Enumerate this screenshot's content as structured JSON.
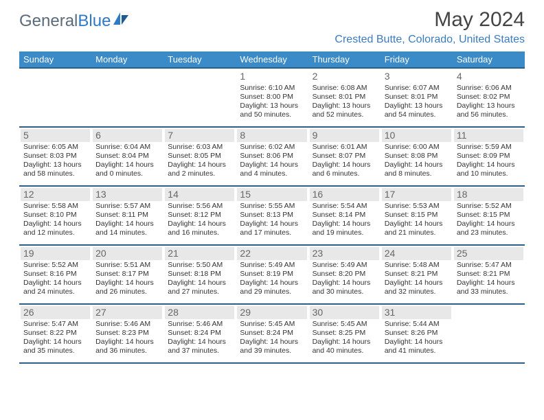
{
  "brand": {
    "part1": "General",
    "part2": "Blue"
  },
  "title": "May 2024",
  "location": "Crested Butte, Colorado, United States",
  "colors": {
    "header_bg": "#3b8bc9",
    "header_text": "#ffffff",
    "row_border": "#2d5e8a",
    "daynum_shade": "#e8e8e8",
    "location_color": "#3b7bbf",
    "logo_gray": "#5a6b7a",
    "logo_blue": "#2e7ac4"
  },
  "day_headers": [
    "Sunday",
    "Monday",
    "Tuesday",
    "Wednesday",
    "Thursday",
    "Friday",
    "Saturday"
  ],
  "weeks": [
    [
      null,
      null,
      null,
      {
        "n": "1",
        "shaded": false,
        "sunrise": "6:10 AM",
        "sunset": "8:00 PM",
        "dlh": "13",
        "dlm": "50"
      },
      {
        "n": "2",
        "shaded": false,
        "sunrise": "6:08 AM",
        "sunset": "8:01 PM",
        "dlh": "13",
        "dlm": "52"
      },
      {
        "n": "3",
        "shaded": false,
        "sunrise": "6:07 AM",
        "sunset": "8:01 PM",
        "dlh": "13",
        "dlm": "54"
      },
      {
        "n": "4",
        "shaded": false,
        "sunrise": "6:06 AM",
        "sunset": "8:02 PM",
        "dlh": "13",
        "dlm": "56"
      }
    ],
    [
      {
        "n": "5",
        "shaded": true,
        "sunrise": "6:05 AM",
        "sunset": "8:03 PM",
        "dlh": "13",
        "dlm": "58"
      },
      {
        "n": "6",
        "shaded": true,
        "sunrise": "6:04 AM",
        "sunset": "8:04 PM",
        "dlh": "14",
        "dlm": "0"
      },
      {
        "n": "7",
        "shaded": true,
        "sunrise": "6:03 AM",
        "sunset": "8:05 PM",
        "dlh": "14",
        "dlm": "2"
      },
      {
        "n": "8",
        "shaded": true,
        "sunrise": "6:02 AM",
        "sunset": "8:06 PM",
        "dlh": "14",
        "dlm": "4"
      },
      {
        "n": "9",
        "shaded": true,
        "sunrise": "6:01 AM",
        "sunset": "8:07 PM",
        "dlh": "14",
        "dlm": "6"
      },
      {
        "n": "10",
        "shaded": true,
        "sunrise": "6:00 AM",
        "sunset": "8:08 PM",
        "dlh": "14",
        "dlm": "8"
      },
      {
        "n": "11",
        "shaded": true,
        "sunrise": "5:59 AM",
        "sunset": "8:09 PM",
        "dlh": "14",
        "dlm": "10"
      }
    ],
    [
      {
        "n": "12",
        "shaded": true,
        "sunrise": "5:58 AM",
        "sunset": "8:10 PM",
        "dlh": "14",
        "dlm": "12"
      },
      {
        "n": "13",
        "shaded": true,
        "sunrise": "5:57 AM",
        "sunset": "8:11 PM",
        "dlh": "14",
        "dlm": "14"
      },
      {
        "n": "14",
        "shaded": true,
        "sunrise": "5:56 AM",
        "sunset": "8:12 PM",
        "dlh": "14",
        "dlm": "16"
      },
      {
        "n": "15",
        "shaded": true,
        "sunrise": "5:55 AM",
        "sunset": "8:13 PM",
        "dlh": "14",
        "dlm": "17"
      },
      {
        "n": "16",
        "shaded": true,
        "sunrise": "5:54 AM",
        "sunset": "8:14 PM",
        "dlh": "14",
        "dlm": "19"
      },
      {
        "n": "17",
        "shaded": true,
        "sunrise": "5:53 AM",
        "sunset": "8:15 PM",
        "dlh": "14",
        "dlm": "21"
      },
      {
        "n": "18",
        "shaded": true,
        "sunrise": "5:52 AM",
        "sunset": "8:15 PM",
        "dlh": "14",
        "dlm": "23"
      }
    ],
    [
      {
        "n": "19",
        "shaded": true,
        "sunrise": "5:52 AM",
        "sunset": "8:16 PM",
        "dlh": "14",
        "dlm": "24"
      },
      {
        "n": "20",
        "shaded": true,
        "sunrise": "5:51 AM",
        "sunset": "8:17 PM",
        "dlh": "14",
        "dlm": "26"
      },
      {
        "n": "21",
        "shaded": true,
        "sunrise": "5:50 AM",
        "sunset": "8:18 PM",
        "dlh": "14",
        "dlm": "27"
      },
      {
        "n": "22",
        "shaded": true,
        "sunrise": "5:49 AM",
        "sunset": "8:19 PM",
        "dlh": "14",
        "dlm": "29"
      },
      {
        "n": "23",
        "shaded": true,
        "sunrise": "5:49 AM",
        "sunset": "8:20 PM",
        "dlh": "14",
        "dlm": "30"
      },
      {
        "n": "24",
        "shaded": true,
        "sunrise": "5:48 AM",
        "sunset": "8:21 PM",
        "dlh": "14",
        "dlm": "32"
      },
      {
        "n": "25",
        "shaded": true,
        "sunrise": "5:47 AM",
        "sunset": "8:21 PM",
        "dlh": "14",
        "dlm": "33"
      }
    ],
    [
      {
        "n": "26",
        "shaded": true,
        "sunrise": "5:47 AM",
        "sunset": "8:22 PM",
        "dlh": "14",
        "dlm": "35"
      },
      {
        "n": "27",
        "shaded": true,
        "sunrise": "5:46 AM",
        "sunset": "8:23 PM",
        "dlh": "14",
        "dlm": "36"
      },
      {
        "n": "28",
        "shaded": true,
        "sunrise": "5:46 AM",
        "sunset": "8:24 PM",
        "dlh": "14",
        "dlm": "37"
      },
      {
        "n": "29",
        "shaded": true,
        "sunrise": "5:45 AM",
        "sunset": "8:24 PM",
        "dlh": "14",
        "dlm": "39"
      },
      {
        "n": "30",
        "shaded": true,
        "sunrise": "5:45 AM",
        "sunset": "8:25 PM",
        "dlh": "14",
        "dlm": "40"
      },
      {
        "n": "31",
        "shaded": true,
        "sunrise": "5:44 AM",
        "sunset": "8:26 PM",
        "dlh": "14",
        "dlm": "41"
      },
      null
    ]
  ],
  "labels": {
    "sunrise": "Sunrise:",
    "sunset": "Sunset:",
    "daylight_prefix": "Daylight:",
    "hours": "hours",
    "and": "and",
    "minutes": "minutes."
  }
}
